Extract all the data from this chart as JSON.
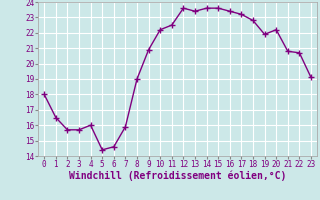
{
  "x": [
    0,
    1,
    2,
    3,
    4,
    5,
    6,
    7,
    8,
    9,
    10,
    11,
    12,
    13,
    14,
    15,
    16,
    17,
    18,
    19,
    20,
    21,
    22,
    23
  ],
  "y": [
    18,
    16.5,
    15.7,
    15.7,
    16.0,
    14.4,
    14.6,
    15.9,
    19.0,
    20.9,
    22.2,
    22.5,
    23.6,
    23.4,
    23.6,
    23.6,
    23.4,
    23.2,
    22.8,
    21.9,
    22.2,
    20.8,
    20.7,
    19.1
  ],
  "line_color": "#800080",
  "marker": "+",
  "marker_size": 4,
  "xlabel": "Windchill (Refroidissement éolien,°C)",
  "xlim": [
    -0.5,
    23.5
  ],
  "ylim": [
    14,
    24
  ],
  "yticks": [
    14,
    15,
    16,
    17,
    18,
    19,
    20,
    21,
    22,
    23,
    24
  ],
  "xticks": [
    0,
    1,
    2,
    3,
    4,
    5,
    6,
    7,
    8,
    9,
    10,
    11,
    12,
    13,
    14,
    15,
    16,
    17,
    18,
    19,
    20,
    21,
    22,
    23
  ],
  "background_color": "#cce8e8",
  "grid_color": "#ffffff",
  "tick_fontsize": 5.5,
  "xlabel_fontsize": 7,
  "line_width": 1.0
}
